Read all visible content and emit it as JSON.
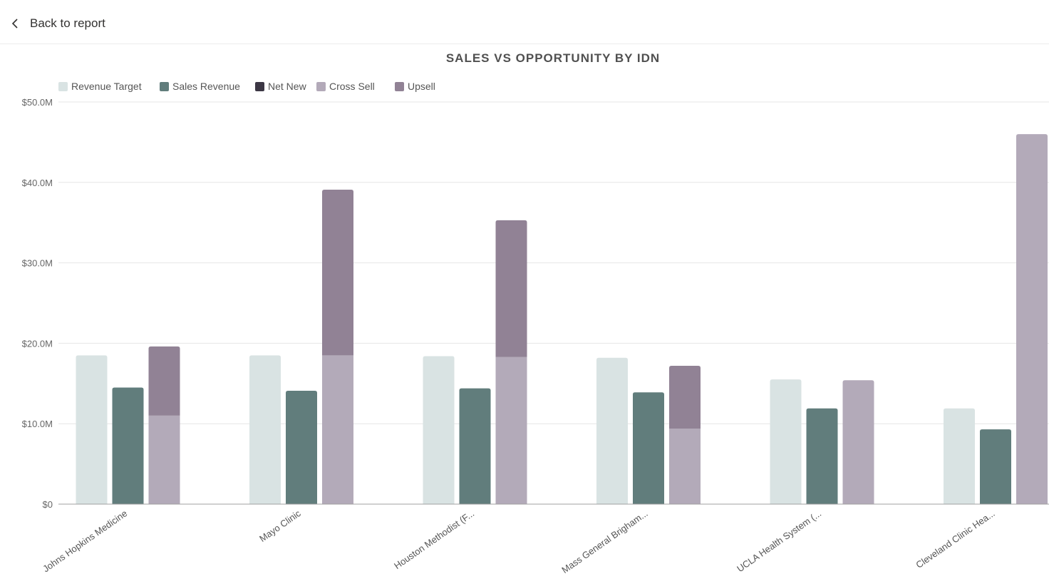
{
  "nav": {
    "back_label": "Back to report"
  },
  "colors": {
    "revenue_target": "#d9e3e3",
    "sales_revenue": "#617d7c",
    "net_new": "#3c3744",
    "cross_sell": "#b3aab9",
    "upsell": "#918295",
    "grid": "#e6e6e6",
    "axis": "#a0a0a0"
  },
  "chart_data": {
    "type": "bar",
    "title": "SALES VS OPPORTUNITY BY IDN",
    "xlabel": "",
    "ylabel": "",
    "ylim": [
      0,
      50
    ],
    "y_ticks": [
      0,
      10,
      20,
      30,
      40,
      50
    ],
    "y_tick_labels": [
      "$0",
      "$10.0M",
      "$20.0M",
      "$30.0M",
      "$40.0M",
      "$50.0M"
    ],
    "grid": true,
    "legend_position": "top-left",
    "categories": [
      "Johns Hopkins Medicine",
      "Mayo Clinic",
      "Houston Methodist (F...",
      "Mass General Brigham...",
      "UCLA Health System (...",
      "Cleveland Clinic Hea..."
    ],
    "legend": [
      "Revenue Target",
      "Sales Revenue",
      "Net New",
      "Cross Sell",
      "Upsell"
    ],
    "series": [
      {
        "name": "Revenue Target",
        "values": [
          18.5,
          18.5,
          18.4,
          18.2,
          15.5,
          11.9
        ]
      },
      {
        "name": "Sales Revenue",
        "values": [
          14.5,
          14.1,
          14.4,
          13.9,
          11.9,
          9.3
        ]
      },
      {
        "name": "Net New",
        "values": [
          0,
          0,
          0,
          0,
          0,
          0
        ]
      },
      {
        "name": "Cross Sell",
        "values": [
          11.0,
          18.5,
          18.3,
          9.4,
          15.4,
          46.0
        ]
      },
      {
        "name": "Upsell",
        "values": [
          8.6,
          20.6,
          17.0,
          7.8,
          0,
          0
        ]
      }
    ]
  }
}
